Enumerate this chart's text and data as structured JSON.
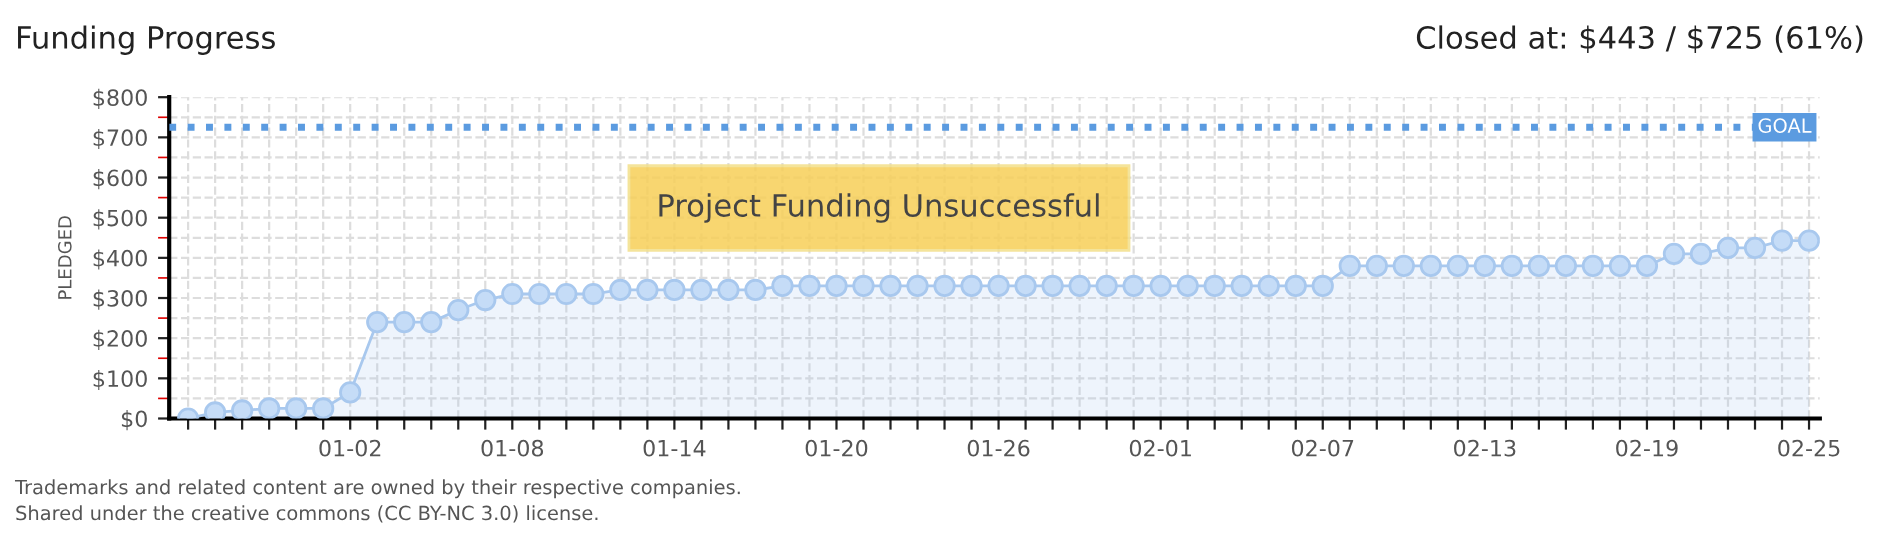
{
  "chart_data": {
    "type": "area",
    "title": "Funding Progress",
    "subtitle": "Closed at: $443 / $725 (61%)",
    "ylabel": "PLEDGED",
    "categories": [
      null,
      null,
      null,
      null,
      null,
      null,
      "01-02",
      null,
      null,
      null,
      null,
      null,
      "01-08",
      null,
      null,
      null,
      null,
      null,
      "01-14",
      null,
      null,
      null,
      null,
      null,
      "01-20",
      null,
      null,
      null,
      null,
      null,
      "01-26",
      null,
      null,
      null,
      null,
      null,
      "02-01",
      null,
      null,
      null,
      null,
      null,
      "02-07",
      null,
      null,
      null,
      null,
      null,
      "02-13",
      null,
      null,
      null,
      null,
      null,
      "02-19",
      null,
      null,
      null,
      null,
      null,
      "02-25"
    ],
    "series": [
      {
        "color": "#a8c8ee",
        "values": [
          0,
          15,
          20,
          25,
          25,
          25,
          65,
          240,
          240,
          240,
          270,
          295,
          310,
          310,
          310,
          310,
          320,
          320,
          320,
          320,
          320,
          320,
          330,
          330,
          330,
          330,
          330,
          330,
          330,
          330,
          330,
          330,
          330,
          330,
          330,
          330,
          330,
          330,
          330,
          330,
          330,
          330,
          330,
          380,
          380,
          380,
          380,
          380,
          380,
          380,
          380,
          380,
          380,
          380,
          380,
          410,
          410,
          425,
          425,
          443,
          443
        ]
      }
    ],
    "ylim": [
      0,
      800
    ],
    "yticks": [
      {
        "value": 0,
        "label": "$0"
      },
      {
        "value": 100,
        "label": "$100"
      },
      {
        "value": 200,
        "label": "$200"
      },
      {
        "value": 300,
        "label": "$300"
      },
      {
        "value": 400,
        "label": "$400"
      },
      {
        "value": 500,
        "label": "$500"
      },
      {
        "value": 600,
        "label": "$600"
      },
      {
        "value": 700,
        "label": "$700"
      },
      {
        "value": 800,
        "label": "$800"
      }
    ],
    "ref_lines": [
      {
        "axis": "y",
        "value": 725,
        "label": "GOAL",
        "color": "#5b9be0",
        "line_style": "dotted"
      }
    ],
    "annotations": [
      "Project Funding Unsuccessful",
      "Trademarks and related content are owned by their respective companies.",
      "Shared under the creative commons (CC BY-NC 3.0) license."
    ],
    "grid": true,
    "marker": "circle",
    "line_style": "solid",
    "legend": false
  }
}
